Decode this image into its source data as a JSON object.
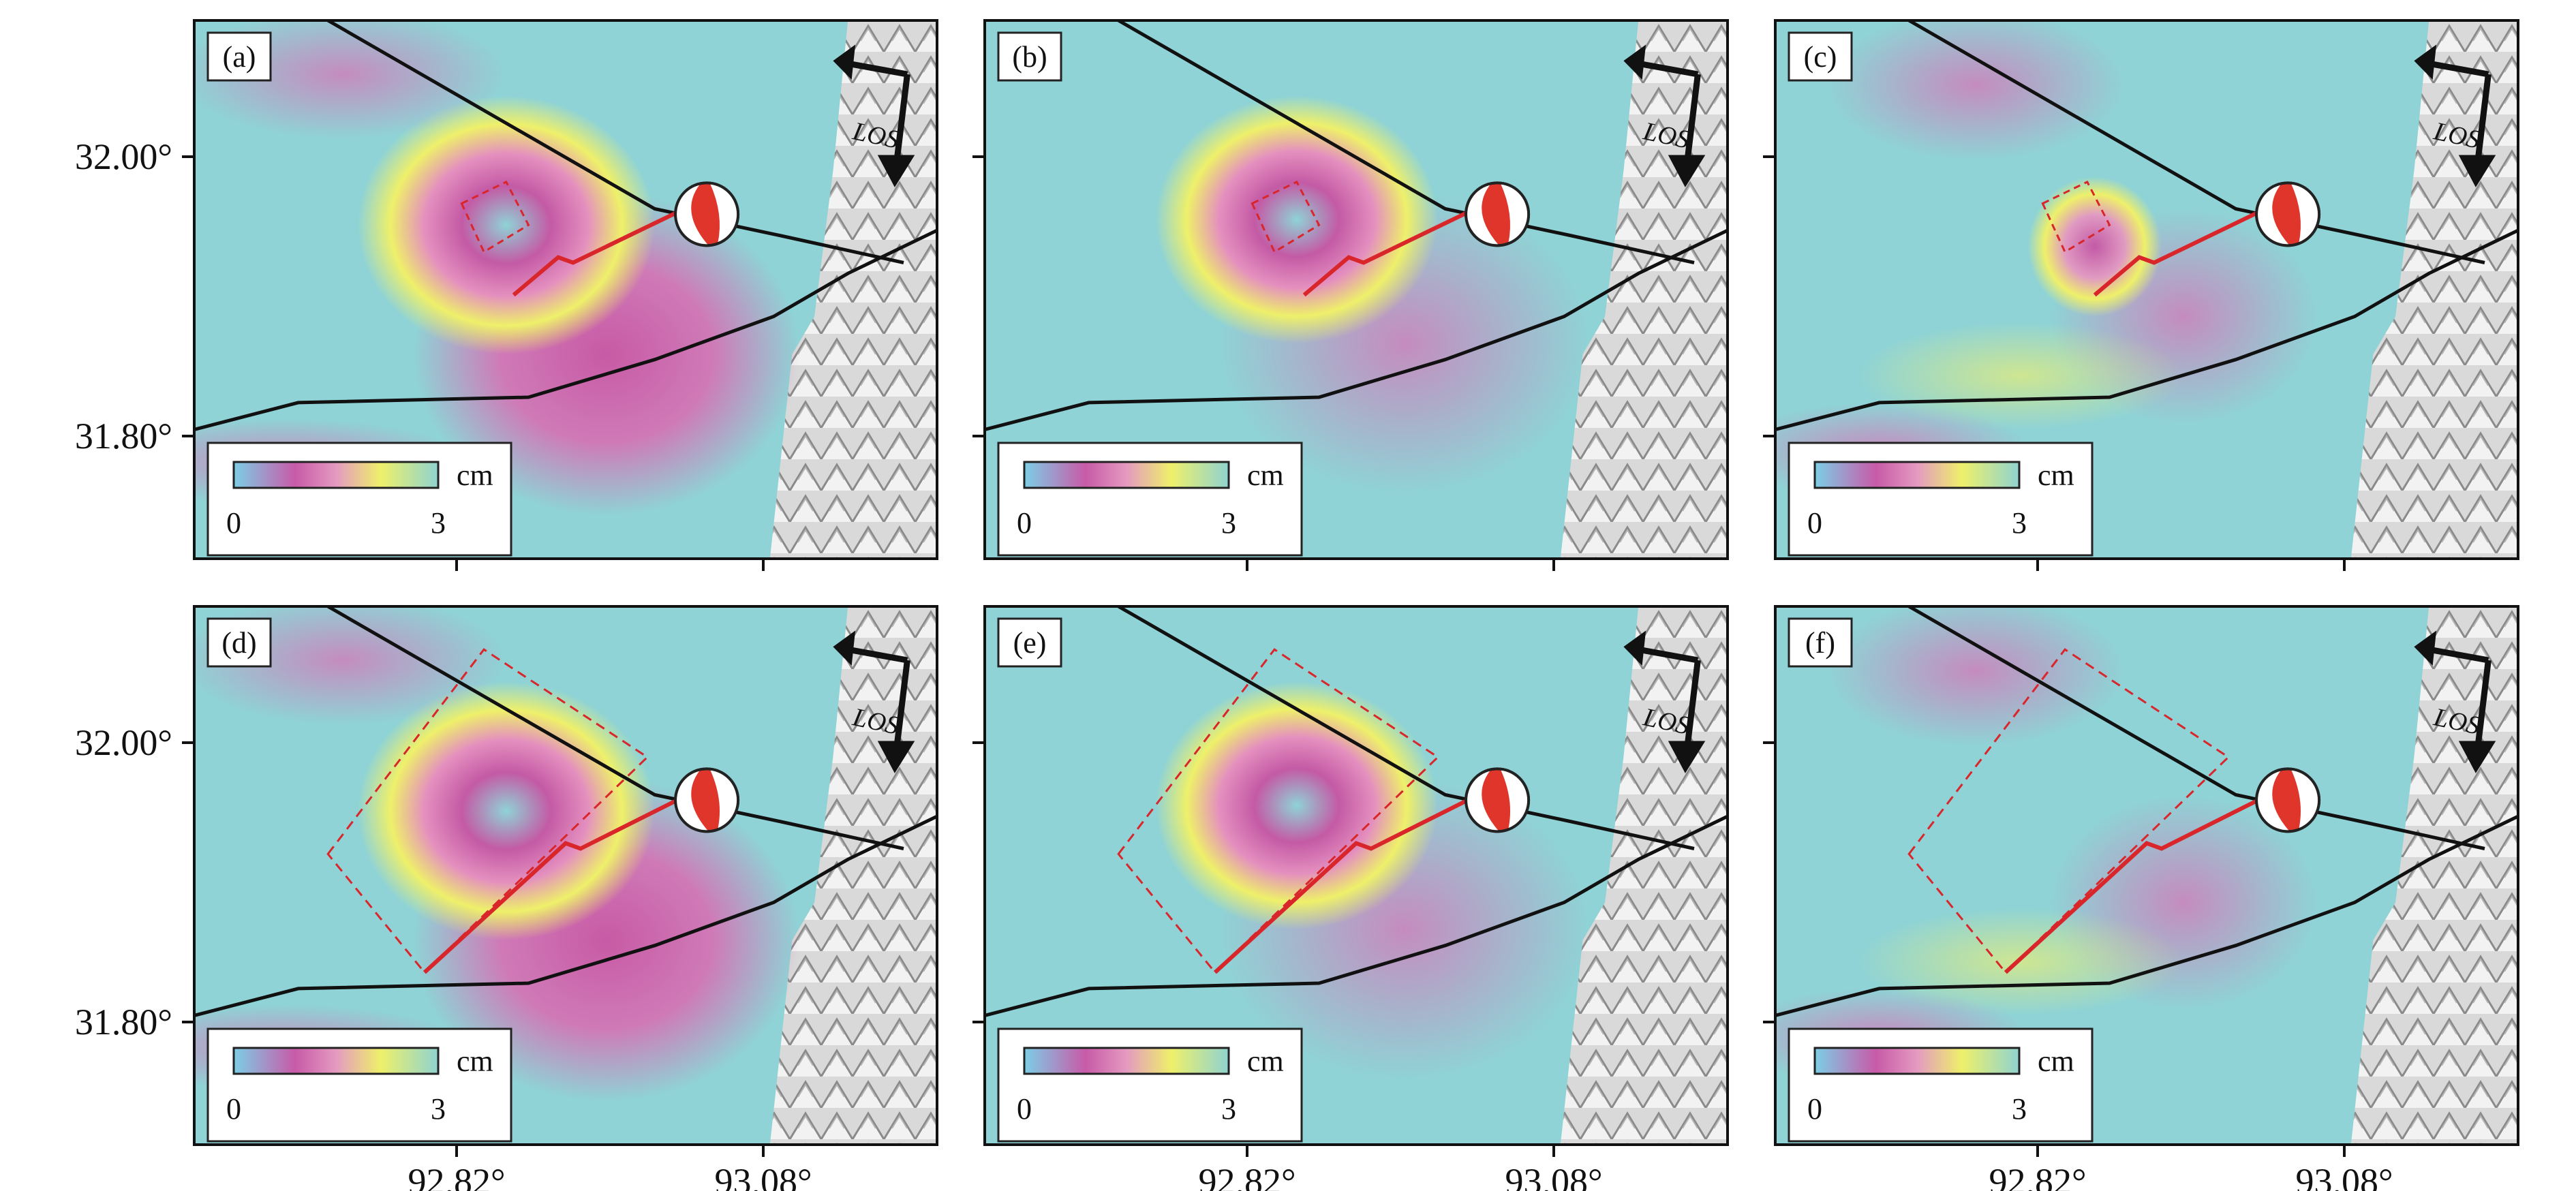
{
  "axes": {
    "lat_labels": [
      "32.00°",
      "31.80°"
    ],
    "lon_labels": [
      "92.82°",
      "93.08°"
    ]
  },
  "colorbar": {
    "unit": "cm",
    "min_label": "0",
    "max_label": "3"
  },
  "los_label": "LOS",
  "panels": [
    {
      "label": "(a)",
      "pattern": "ring",
      "fault_model": "small"
    },
    {
      "label": "(b)",
      "pattern": "smooth-ring",
      "fault_model": "small"
    },
    {
      "label": "(c)",
      "pattern": "residual",
      "fault_model": "small"
    },
    {
      "label": "(d)",
      "pattern": "ring",
      "fault_model": "large"
    },
    {
      "label": "(e)",
      "pattern": "smooth-ring",
      "fault_model": "large"
    },
    {
      "label": "(f)",
      "pattern": "residual",
      "fault_model": "large"
    }
  ],
  "colors": {
    "background": "#8fd3d6",
    "ring_yellow": "#eef06a",
    "magenta": "#cc5aa5",
    "fault_model": "#d8262b",
    "fault_trace": "#111111",
    "focal_red": "#e0352b"
  }
}
